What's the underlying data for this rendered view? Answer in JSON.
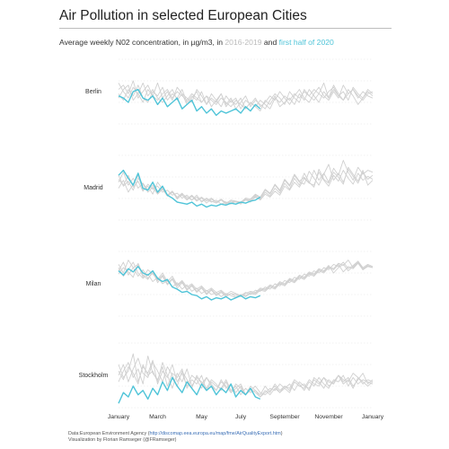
{
  "title": "Air Pollution in selected European Cities",
  "subtitle": {
    "prefix": "Average weekly N02 concentration, in µg/m3, in ",
    "hist_label": "2016-2019",
    "middle": " and ",
    "current_label": "first half of 2020"
  },
  "source": {
    "prefix": "Data:European Environment Agency (",
    "url": "http://discomap.eea.europa.eu/map/fme/AirQualityExport.htm",
    "suffix": ")",
    "credit": "Visualization by Florian Ramseger (@FRamseger)"
  },
  "colors": {
    "historical": "#d0d0d0",
    "current": "#4fc4d8",
    "grid": "#e6e6e6",
    "text": "#333333"
  },
  "chart_data": {
    "type": "line",
    "title": "Air Pollution in selected European Cities",
    "subtitle": "Average weekly N02 concentration, in µg/m3, in 2016-2019 and first half of 2020",
    "x_unit": "week of year",
    "xlim": [
      1,
      53
    ],
    "x_ticks": [
      {
        "label": "January",
        "week": 1
      },
      {
        "label": "March",
        "week": 9
      },
      {
        "label": "May",
        "week": 18
      },
      {
        "label": "July",
        "week": 26
      },
      {
        "label": "September",
        "week": 35
      },
      {
        "label": "November",
        "week": 44
      },
      {
        "label": "January",
        "week": 53
      }
    ],
    "grid": true,
    "panels": [
      {
        "city": "Berlin",
        "ylim": [
          15,
          45
        ],
        "historical": [
          [
            31,
            33,
            29,
            35,
            27,
            30,
            33,
            28,
            26,
            29,
            31,
            27,
            30,
            28,
            26,
            29,
            27,
            25,
            28,
            26,
            24,
            27,
            25,
            23,
            26,
            24,
            22,
            25,
            23,
            26,
            24,
            22,
            27,
            25,
            28,
            26,
            29,
            27,
            30,
            28,
            31,
            29,
            27,
            30,
            32,
            28,
            26,
            29,
            31,
            27,
            30,
            28,
            27
          ],
          [
            29,
            26,
            31,
            28,
            33,
            27,
            25,
            30,
            28,
            32,
            26,
            29,
            27,
            31,
            25,
            28,
            26,
            30,
            24,
            27,
            25,
            29,
            23,
            26,
            24,
            27,
            22,
            25,
            23,
            21,
            26,
            24,
            28,
            23,
            25,
            27,
            24,
            29,
            26,
            31,
            28,
            25,
            30,
            27,
            33,
            29,
            26,
            31,
            28,
            24,
            27,
            30,
            28
          ],
          [
            34,
            30,
            27,
            32,
            29,
            25,
            31,
            28,
            34,
            27,
            30,
            26,
            32,
            29,
            27,
            25,
            31,
            28,
            24,
            29,
            26,
            23,
            28,
            25,
            27,
            22,
            26,
            24,
            27,
            23,
            25,
            28,
            26,
            30,
            27,
            24,
            28,
            31,
            27,
            25,
            29,
            32,
            28,
            26,
            30,
            27,
            33,
            29,
            31,
            28,
            26,
            29,
            30
          ],
          [
            27,
            31,
            33,
            26,
            29,
            34,
            28,
            31,
            27,
            25,
            28,
            31,
            26,
            29,
            24,
            27,
            30,
            25,
            28,
            23,
            26,
            29,
            24,
            27,
            22,
            25,
            28,
            23,
            26,
            24,
            22,
            26,
            29,
            27,
            24,
            30,
            27,
            25,
            31,
            28,
            26,
            29,
            34,
            27,
            31,
            28,
            30,
            26,
            32,
            29,
            27,
            31,
            29
          ]
        ],
        "current": [
          28,
          27,
          25,
          30,
          31,
          27,
          26,
          28,
          24,
          27,
          23,
          25,
          27,
          22,
          24,
          26,
          21,
          23,
          20,
          22,
          19,
          21,
          20,
          21,
          22,
          20,
          23,
          21,
          24,
          22
        ]
      },
      {
        "city": "Madrid",
        "ylim": [
          10,
          75
        ],
        "historical": [
          [
            42,
            50,
            38,
            46,
            55,
            40,
            44,
            36,
            48,
            41,
            35,
            39,
            33,
            37,
            31,
            35,
            30,
            33,
            29,
            32,
            28,
            31,
            27,
            30,
            29,
            26,
            31,
            28,
            34,
            30,
            36,
            33,
            39,
            35,
            44,
            40,
            48,
            43,
            52,
            47,
            45,
            58,
            50,
            44,
            55,
            49,
            60,
            52,
            46,
            57,
            50,
            54,
            51
          ],
          [
            55,
            44,
            49,
            40,
            52,
            46,
            38,
            43,
            36,
            41,
            34,
            38,
            32,
            35,
            30,
            34,
            29,
            32,
            27,
            31,
            28,
            30,
            26,
            29,
            28,
            27,
            30,
            29,
            33,
            31,
            38,
            34,
            42,
            37,
            47,
            41,
            52,
            45,
            57,
            48,
            43,
            61,
            51,
            47,
            58,
            53,
            46,
            63,
            56,
            49,
            60,
            45,
            50
          ],
          [
            48,
            58,
            45,
            52,
            42,
            47,
            40,
            45,
            37,
            42,
            35,
            39,
            31,
            36,
            33,
            30,
            35,
            28,
            32,
            29,
            27,
            30,
            28,
            26,
            29,
            27,
            31,
            30,
            35,
            32,
            40,
            36,
            45,
            39,
            50,
            44,
            55,
            48,
            46,
            59,
            52,
            45,
            56,
            66,
            50,
            57,
            48,
            61,
            54,
            47,
            58,
            51,
            55
          ],
          [
            51,
            45,
            55,
            43,
            49,
            39,
            46,
            41,
            44,
            38,
            40,
            35,
            37,
            32,
            35,
            30,
            33,
            29,
            31,
            28,
            30,
            26,
            28,
            27,
            29,
            28,
            32,
            31,
            36,
            33,
            41,
            37,
            46,
            40,
            51,
            45,
            56,
            49,
            53,
            47,
            60,
            50,
            57,
            48,
            62,
            55,
            70,
            58,
            50,
            63,
            56,
            60,
            58
          ]
        ],
        "current": [
          55,
          60,
          52,
          45,
          57,
          42,
          40,
          48,
          38,
          44,
          35,
          32,
          28,
          27,
          26,
          28,
          24,
          26,
          23,
          25,
          24,
          26,
          25,
          27,
          26,
          28,
          27,
          29,
          30,
          33
        ]
      },
      {
        "city": "Milan",
        "ylim": [
          10,
          70
        ],
        "historical": [
          [
            52,
            60,
            48,
            55,
            58,
            46,
            53,
            49,
            44,
            50,
            42,
            47,
            39,
            43,
            37,
            40,
            35,
            38,
            33,
            36,
            32,
            34,
            30,
            33,
            31,
            29,
            32,
            30,
            34,
            33,
            37,
            35,
            40,
            38,
            43,
            41,
            46,
            44,
            49,
            47,
            52,
            50,
            55,
            53,
            58,
            56,
            60,
            54,
            57,
            61,
            55,
            58,
            56
          ],
          [
            58,
            50,
            62,
            55,
            47,
            53,
            45,
            50,
            43,
            48,
            40,
            45,
            38,
            42,
            35,
            39,
            33,
            37,
            31,
            35,
            30,
            33,
            29,
            31,
            28,
            30,
            29,
            32,
            31,
            35,
            34,
            38,
            36,
            41,
            39,
            44,
            42,
            47,
            45,
            50,
            48,
            53,
            51,
            56,
            54,
            59,
            57,
            62,
            55,
            60,
            53,
            57,
            55
          ],
          [
            49,
            55,
            51,
            46,
            59,
            48,
            44,
            52,
            41,
            47,
            39,
            44,
            36,
            41,
            34,
            38,
            32,
            36,
            30,
            34,
            29,
            32,
            28,
            31,
            30,
            28,
            31,
            33,
            32,
            36,
            35,
            39,
            37,
            42,
            40,
            45,
            43,
            48,
            46,
            51,
            49,
            54,
            52,
            57,
            50,
            55,
            58,
            52,
            56,
            60,
            54,
            57,
            55
          ],
          [
            55,
            47,
            53,
            60,
            50,
            45,
            49,
            42,
            46,
            40,
            43,
            37,
            41,
            35,
            39,
            33,
            36,
            31,
            34,
            30,
            32,
            28,
            31,
            29,
            27,
            30,
            28,
            31,
            30,
            34,
            33,
            37,
            35,
            40,
            38,
            43,
            41,
            46,
            44,
            49,
            47,
            52,
            50,
            55,
            53,
            58,
            51,
            56,
            54,
            59,
            53,
            56,
            55
          ]
        ],
        "current": [
          52,
          48,
          54,
          51,
          56,
          50,
          48,
          52,
          45,
          42,
          44,
          37,
          35,
          32,
          33,
          30,
          29,
          26,
          28,
          25,
          27,
          26,
          28,
          25,
          27,
          29,
          26,
          28,
          27,
          29
        ]
      },
      {
        "city": "Stockholm",
        "ylim": [
          10,
          40
        ],
        "historical": [
          [
            25,
            30,
            22,
            28,
            33,
            26,
            24,
            31,
            27,
            22,
            29,
            25,
            20,
            27,
            23,
            19,
            25,
            21,
            24,
            20,
            18,
            23,
            19,
            21,
            17,
            20,
            16,
            19,
            17,
            15,
            18,
            16,
            19,
            17,
            20,
            18,
            22,
            20,
            19,
            23,
            21,
            20,
            24,
            22,
            21,
            25,
            23,
            22,
            26,
            24,
            21,
            23,
            22
          ],
          [
            30,
            24,
            27,
            35,
            22,
            29,
            26,
            32,
            21,
            27,
            24,
            30,
            22,
            26,
            20,
            25,
            23,
            19,
            24,
            21,
            18,
            22,
            20,
            17,
            21,
            19,
            16,
            20,
            18,
            15,
            17,
            19,
            18,
            21,
            19,
            17,
            22,
            20,
            21,
            18,
            24,
            22,
            19,
            23,
            21,
            25,
            22,
            24,
            20,
            23,
            26,
            21,
            23
          ],
          [
            22,
            27,
            31,
            24,
            28,
            21,
            34,
            26,
            23,
            29,
            20,
            26,
            24,
            28,
            19,
            23,
            21,
            25,
            18,
            22,
            20,
            19,
            23,
            18,
            20,
            16,
            19,
            17,
            18,
            16,
            20,
            17,
            21,
            18,
            20,
            19,
            23,
            21,
            18,
            22,
            20,
            24,
            21,
            19,
            23,
            22,
            25,
            20,
            24,
            21,
            23,
            22,
            21
          ],
          [
            27,
            23,
            29,
            26,
            21,
            30,
            25,
            27,
            22,
            31,
            25,
            19,
            26,
            22,
            28,
            20,
            24,
            22,
            19,
            23,
            21,
            18,
            22,
            17,
            19,
            21,
            16,
            18,
            20,
            17,
            16,
            18,
            20,
            17,
            19,
            21,
            18,
            22,
            20,
            19,
            23,
            21,
            24,
            20,
            22,
            25,
            21,
            23,
            19,
            24,
            22,
            20,
            22
          ]
        ],
        "current": [
          12,
          17,
          15,
          20,
          16,
          18,
          14,
          19,
          16,
          22,
          18,
          24,
          20,
          17,
          22,
          19,
          16,
          21,
          18,
          20,
          16,
          19,
          17,
          21,
          15,
          18,
          16,
          19,
          15,
          14
        ]
      }
    ]
  }
}
